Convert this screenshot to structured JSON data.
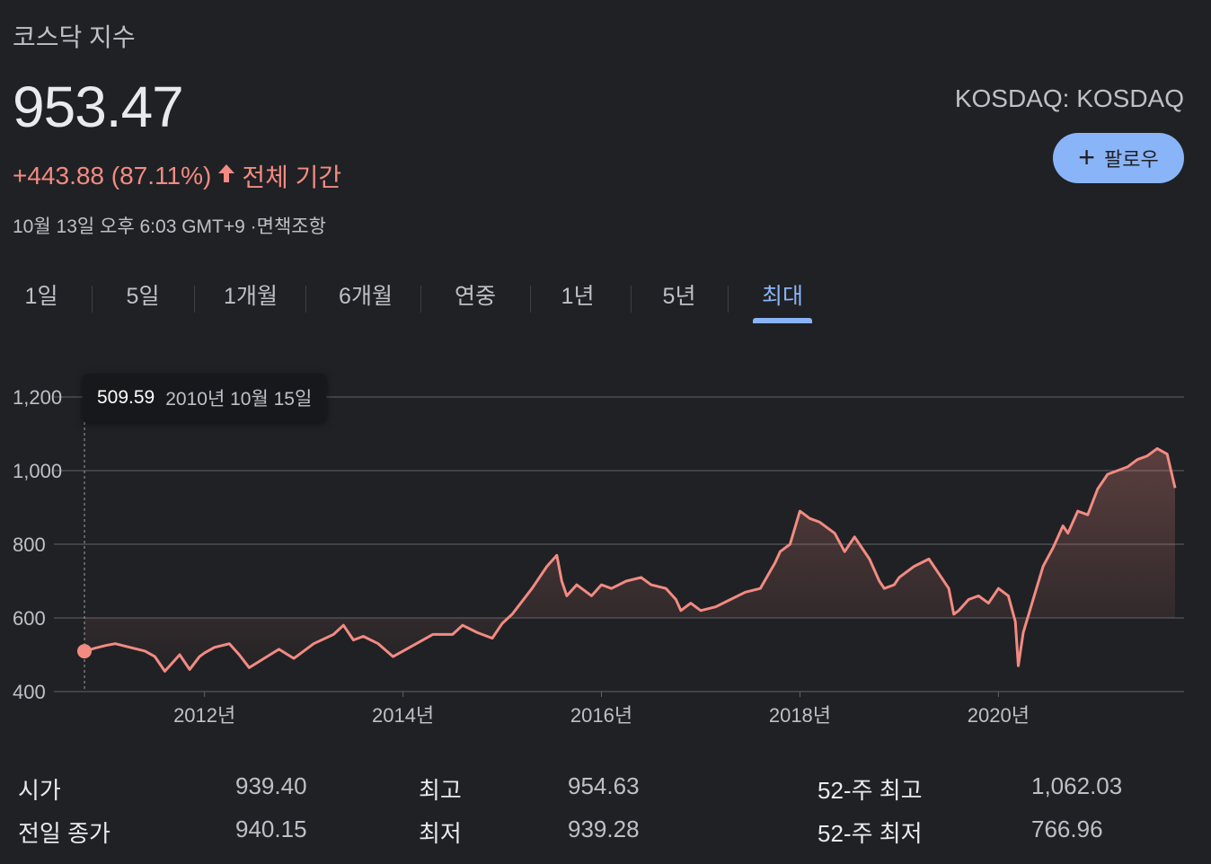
{
  "header": {
    "title": "코스닥 지수",
    "price": "953.47",
    "change": "+443.88 (87.11%)",
    "period": "전체 기간",
    "timestamp": "10월 13일 오후 6:03 GMT+9 ·면책조항",
    "ticker": "KOSDAQ: KOSDAQ",
    "follow_label": "팔로우"
  },
  "tabs": [
    {
      "label": "1일",
      "active": false
    },
    {
      "label": "5일",
      "active": false
    },
    {
      "label": "1개월",
      "active": false
    },
    {
      "label": "6개월",
      "active": false
    },
    {
      "label": "연중",
      "active": false
    },
    {
      "label": "1년",
      "active": false
    },
    {
      "label": "5년",
      "active": false
    },
    {
      "label": "최대",
      "active": true
    }
  ],
  "tooltip": {
    "value": "509.59",
    "date": "2010년 10월 15일"
  },
  "colors": {
    "background": "#202124",
    "line": "#f28b82",
    "accent": "#8ab4f8"
  },
  "chart_data": {
    "type": "area",
    "y_ticks": [
      "1,200",
      "1,000",
      "800",
      "600",
      "400"
    ],
    "ylim": [
      400,
      1200
    ],
    "x_ticks": [
      "2012년",
      "2014년",
      "2016년",
      "2018년",
      "2020년"
    ],
    "xlim": [
      2010.79,
      2021.78
    ],
    "grid": true,
    "series": [
      {
        "x": [
          2010.79,
          2010.9,
          2011.0,
          2011.1,
          2011.25,
          2011.4,
          2011.5,
          2011.6,
          2011.65,
          2011.75,
          2011.85,
          2011.95,
          2012.0,
          2012.1,
          2012.25,
          2012.35,
          2012.45,
          2012.6,
          2012.75,
          2012.9,
          2013.0,
          2013.1,
          2013.3,
          2013.4,
          2013.5,
          2013.6,
          2013.75,
          2013.9,
          2014.0,
          2014.1,
          2014.3,
          2014.5,
          2014.6,
          2014.75,
          2014.9,
          2015.0,
          2015.1,
          2015.3,
          2015.45,
          2015.55,
          2015.6,
          2015.65,
          2015.75,
          2015.9,
          2016.0,
          2016.1,
          2016.25,
          2016.4,
          2016.5,
          2016.65,
          2016.75,
          2016.8,
          2016.9,
          2017.0,
          2017.15,
          2017.3,
          2017.45,
          2017.6,
          2017.75,
          2017.8,
          2017.9,
          2018.0,
          2018.1,
          2018.2,
          2018.35,
          2018.45,
          2018.55,
          2018.7,
          2018.8,
          2018.85,
          2018.95,
          2019.0,
          2019.15,
          2019.3,
          2019.4,
          2019.5,
          2019.55,
          2019.6,
          2019.7,
          2019.8,
          2019.9,
          2020.0,
          2020.1,
          2020.17,
          2020.2,
          2020.25,
          2020.35,
          2020.45,
          2020.55,
          2020.65,
          2020.7,
          2020.8,
          2020.9,
          2021.0,
          2021.1,
          2021.2,
          2021.3,
          2021.4,
          2021.5,
          2021.6,
          2021.7,
          2021.78
        ],
        "values": [
          509.59,
          518,
          525,
          530,
          520,
          510,
          495,
          455,
          470,
          500,
          460,
          495,
          505,
          520,
          530,
          500,
          465,
          490,
          515,
          490,
          510,
          530,
          555,
          580,
          540,
          550,
          530,
          495,
          510,
          525,
          555,
          555,
          580,
          560,
          545,
          585,
          610,
          680,
          740,
          770,
          700,
          660,
          690,
          660,
          690,
          680,
          700,
          710,
          690,
          680,
          650,
          620,
          640,
          620,
          630,
          650,
          670,
          680,
          750,
          780,
          800,
          890,
          870,
          860,
          830,
          780,
          820,
          760,
          700,
          680,
          690,
          710,
          740,
          760,
          720,
          680,
          610,
          620,
          650,
          660,
          640,
          680,
          660,
          590,
          470,
          560,
          650,
          740,
          790,
          850,
          830,
          890,
          880,
          950,
          990,
          1000,
          1010,
          1030,
          1040,
          1060,
          1045,
          953
        ]
      }
    ]
  },
  "stats": {
    "open_label": "시가",
    "open_value": "939.40",
    "prev_close_label": "전일 종가",
    "prev_close_value": "940.15",
    "high_label": "최고",
    "high_value": "954.63",
    "low_label": "최저",
    "low_value": "939.28",
    "wk52_high_label": "52-주 최고",
    "wk52_high_value": "1,062.03",
    "wk52_low_label": "52-주 최저",
    "wk52_low_value": "766.96"
  }
}
